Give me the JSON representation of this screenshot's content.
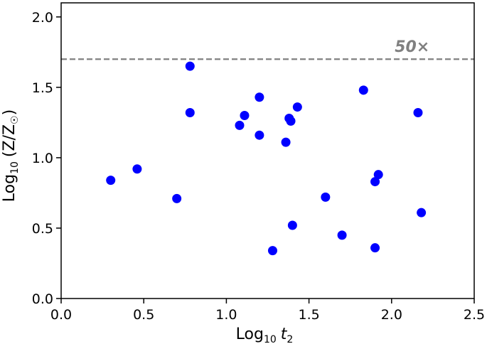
{
  "chart_data": {
    "type": "scatter",
    "title": "",
    "xlabel": {
      "prefix": "Log",
      "sub": "10",
      "var": "t",
      "var_sub": "2"
    },
    "ylabel": {
      "prefix": "Log",
      "sub": "10",
      "body": "(Z/Z",
      "sun": "☉",
      "close": ")"
    },
    "xlim": [
      0.0,
      2.5
    ],
    "ylim": [
      0.0,
      2.1
    ],
    "xticks": [
      0.0,
      0.5,
      1.0,
      1.5,
      2.0,
      2.5
    ],
    "xtick_labels": [
      "0.0",
      "0.5",
      "1.0",
      "1.5",
      "2.0",
      "2.5"
    ],
    "yticks": [
      0.0,
      0.5,
      1.0,
      1.5,
      2.0
    ],
    "ytick_labels": [
      "0.0",
      "0.5",
      "1.0",
      "1.5",
      "2.0"
    ],
    "grid": false,
    "marker_color": "#0000ff",
    "reference_line": {
      "y": 1.7,
      "label": "50×",
      "color": "#808080",
      "style": "dashed"
    },
    "points": [
      {
        "x": 0.3,
        "y": 0.84
      },
      {
        "x": 0.46,
        "y": 0.92
      },
      {
        "x": 0.7,
        "y": 0.71
      },
      {
        "x": 0.78,
        "y": 1.65
      },
      {
        "x": 0.78,
        "y": 1.32
      },
      {
        "x": 1.08,
        "y": 1.23
      },
      {
        "x": 1.11,
        "y": 1.3
      },
      {
        "x": 1.2,
        "y": 1.43
      },
      {
        "x": 1.2,
        "y": 1.16
      },
      {
        "x": 1.28,
        "y": 0.34
      },
      {
        "x": 1.36,
        "y": 1.11
      },
      {
        "x": 1.38,
        "y": 1.28
      },
      {
        "x": 1.39,
        "y": 1.26
      },
      {
        "x": 1.4,
        "y": 0.52
      },
      {
        "x": 1.43,
        "y": 1.36
      },
      {
        "x": 1.6,
        "y": 0.72
      },
      {
        "x": 1.7,
        "y": 0.45
      },
      {
        "x": 1.83,
        "y": 1.48
      },
      {
        "x": 1.9,
        "y": 0.83
      },
      {
        "x": 1.9,
        "y": 0.36
      },
      {
        "x": 1.92,
        "y": 0.88
      },
      {
        "x": 2.16,
        "y": 1.32
      },
      {
        "x": 2.18,
        "y": 0.61
      }
    ]
  }
}
